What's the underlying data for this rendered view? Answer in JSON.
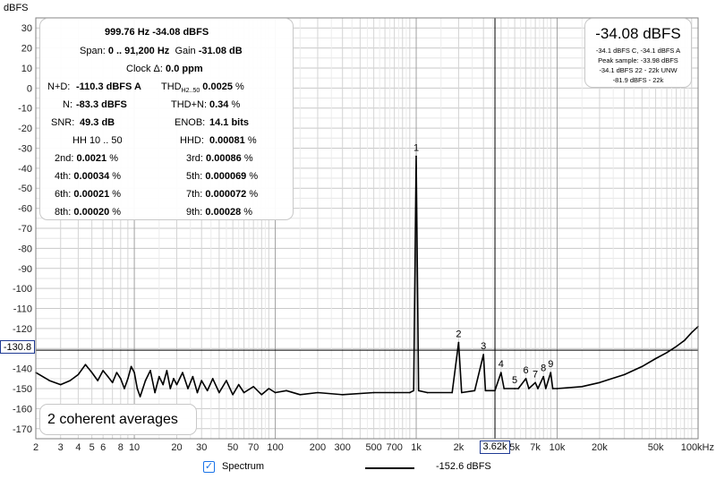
{
  "y_unit": "dBFS",
  "x_unit": "Hz",
  "info": {
    "freq_level": "999.76 Hz  -34.08 dBFS",
    "span_label": "Span:",
    "span_value": "0 .. 91,200 Hz",
    "gain_label": "Gain",
    "gain_value": "-31.08 dB",
    "clock_label": "Clock Δ:",
    "clock_value": "0.0 ppm",
    "nd_label": "N+D:",
    "nd_value": "-110.3 dBFS A",
    "thd_label": "THD",
    "thd_sub": "H2..50",
    "thd_value": "0.0025",
    "thd_unit": "%",
    "n_label": "N:",
    "n_value": "-83.3 dBFS",
    "thdn_label": "THD+N:",
    "thdn_value": "0.34",
    "thdn_unit": "%",
    "snr_label": "SNR:",
    "snr_value": "49.3 dB",
    "enob_label": "ENOB:",
    "enob_value": "14.1 bits",
    "hh_label": "HH 10 .. 50",
    "hhd_label": "HHD:",
    "hhd_value": "0.00081",
    "hhd_unit": "%",
    "harmonics": [
      {
        "label": "2nd:",
        "value": "0.0021",
        "unit": "%"
      },
      {
        "label": "3rd:",
        "value": "0.00086",
        "unit": "%"
      },
      {
        "label": "4th:",
        "value": "0.00034",
        "unit": "%"
      },
      {
        "label": "5th:",
        "value": "0.000069",
        "unit": "%"
      },
      {
        "label": "6th:",
        "value": "0.00021",
        "unit": "%"
      },
      {
        "label": "7th:",
        "value": "0.000072",
        "unit": "%"
      },
      {
        "label": "8th:",
        "value": "0.00020",
        "unit": "%"
      },
      {
        "label": "9th:",
        "value": "0.00028",
        "unit": "%"
      }
    ]
  },
  "level_box": {
    "main": "-34.08 dBFS",
    "line1": "-34.1 dBFS C, -34.1 dBFS A",
    "line2": "Peak sample: -33.98 dBFS",
    "line3": "-34.1 dBFS 22 - 22k UNW",
    "line4": "-81.9 dBFS - 22k"
  },
  "averages": "2 coherent averages",
  "cursor": {
    "y_label": "-130.8",
    "y_value": -130.8,
    "x_label": "3.62k",
    "x_value": 3620
  },
  "legend": {
    "checked": true,
    "check_glyph": "✓",
    "label": "Spectrum",
    "value": "-152.6 dBFS",
    "color": "#000000"
  },
  "chart_data": {
    "type": "line",
    "xscale": "log",
    "xlim": [
      2,
      100000
    ],
    "ylim": [
      -175,
      35
    ],
    "grid": true,
    "ylabel": "dBFS",
    "y_ticks": [
      30,
      20,
      10,
      0,
      -10,
      -20,
      -30,
      -40,
      -50,
      -60,
      -70,
      -80,
      -90,
      -100,
      -110,
      -120,
      -130,
      -140,
      -150,
      -160,
      -170
    ],
    "x_ticks": [
      {
        "v": 2,
        "label": "2"
      },
      {
        "v": 3,
        "label": "3"
      },
      {
        "v": 4,
        "label": "4"
      },
      {
        "v": 5,
        "label": "5"
      },
      {
        "v": 6,
        "label": "6"
      },
      {
        "v": 8,
        "label": "8"
      },
      {
        "v": 10,
        "label": "10"
      },
      {
        "v": 20,
        "label": "20"
      },
      {
        "v": 30,
        "label": "30"
      },
      {
        "v": 50,
        "label": "50"
      },
      {
        "v": 70,
        "label": "70"
      },
      {
        "v": 100,
        "label": "100"
      },
      {
        "v": 200,
        "label": "200"
      },
      {
        "v": 300,
        "label": "300"
      },
      {
        "v": 500,
        "label": "500"
      },
      {
        "v": 700,
        "label": "700"
      },
      {
        "v": 1000,
        "label": "1k"
      },
      {
        "v": 2000,
        "label": "2k"
      },
      {
        "v": 5000,
        "label": "5k"
      },
      {
        "v": 7000,
        "label": "7k"
      },
      {
        "v": 10000,
        "label": "10k"
      },
      {
        "v": 20000,
        "label": "20k"
      },
      {
        "v": 50000,
        "label": "50k"
      },
      {
        "v": 100000,
        "label": "100kHz"
      }
    ],
    "series": [
      {
        "values": [
          [
            2,
            -142
          ],
          [
            2.5,
            -146
          ],
          [
            3,
            -148
          ],
          [
            3.5,
            -146
          ],
          [
            4,
            -143
          ],
          [
            4.5,
            -138
          ],
          [
            5,
            -142
          ],
          [
            5.5,
            -146
          ],
          [
            6,
            -141
          ],
          [
            6.5,
            -144
          ],
          [
            7,
            -147
          ],
          [
            7.5,
            -142
          ],
          [
            8,
            -145
          ],
          [
            8.5,
            -150
          ],
          [
            9,
            -145
          ],
          [
            9.5,
            -139
          ],
          [
            10,
            -142
          ],
          [
            10.5,
            -150
          ],
          [
            11,
            -154
          ],
          [
            12,
            -146
          ],
          [
            13,
            -141
          ],
          [
            14,
            -152
          ],
          [
            15,
            -144
          ],
          [
            16,
            -148
          ],
          [
            17,
            -141
          ],
          [
            18,
            -150
          ],
          [
            19,
            -145
          ],
          [
            20,
            -148
          ],
          [
            22,
            -142
          ],
          [
            24,
            -150
          ],
          [
            26,
            -144
          ],
          [
            28,
            -152
          ],
          [
            30,
            -146
          ],
          [
            33,
            -151
          ],
          [
            36,
            -145
          ],
          [
            40,
            -152
          ],
          [
            45,
            -146
          ],
          [
            50,
            -153
          ],
          [
            55,
            -148
          ],
          [
            60,
            -152
          ],
          [
            70,
            -149
          ],
          [
            80,
            -153
          ],
          [
            90,
            -150
          ],
          [
            100,
            -152
          ],
          [
            120,
            -151
          ],
          [
            150,
            -153
          ],
          [
            200,
            -152
          ],
          [
            300,
            -153
          ],
          [
            500,
            -152
          ],
          [
            700,
            -152
          ],
          [
            900,
            -152
          ],
          [
            960,
            -151
          ],
          [
            999.76,
            -34.08
          ],
          [
            1040,
            -151
          ],
          [
            1200,
            -152
          ],
          [
            1800,
            -152
          ],
          [
            1999.5,
            -127
          ],
          [
            2100,
            -152
          ],
          [
            2600,
            -151
          ],
          [
            2999,
            -133
          ],
          [
            3100,
            -151
          ],
          [
            3620,
            -151
          ],
          [
            3999,
            -142
          ],
          [
            4200,
            -150
          ],
          [
            4999,
            -150
          ],
          [
            5300,
            -150
          ],
          [
            5998,
            -145
          ],
          [
            6300,
            -150
          ],
          [
            6998,
            -147
          ],
          [
            7300,
            -150
          ],
          [
            7997,
            -144
          ],
          [
            8300,
            -150
          ],
          [
            8997,
            -142
          ],
          [
            9300,
            -150
          ],
          [
            10000,
            -150
          ],
          [
            15000,
            -149
          ],
          [
            20000,
            -147
          ],
          [
            30000,
            -143
          ],
          [
            40000,
            -139
          ],
          [
            50000,
            -135
          ],
          [
            60000,
            -132
          ],
          [
            70000,
            -129
          ],
          [
            80000,
            -126
          ],
          [
            90000,
            -122
          ],
          [
            100000,
            -119
          ]
        ]
      }
    ],
    "annotations": [
      {
        "label": "1",
        "x": 999.76,
        "y": -34.08
      },
      {
        "label": "2",
        "x": 1999.5,
        "y": -127
      },
      {
        "label": "3",
        "x": 2999,
        "y": -133
      },
      {
        "label": "4",
        "x": 3999,
        "y": -142
      },
      {
        "label": "5",
        "x": 4999,
        "y": -150
      },
      {
        "label": "6",
        "x": 5998,
        "y": -145
      },
      {
        "label": "7",
        "x": 6998,
        "y": -147
      },
      {
        "label": "8",
        "x": 7997,
        "y": -144
      },
      {
        "label": "9",
        "x": 8997,
        "y": -142
      }
    ]
  }
}
